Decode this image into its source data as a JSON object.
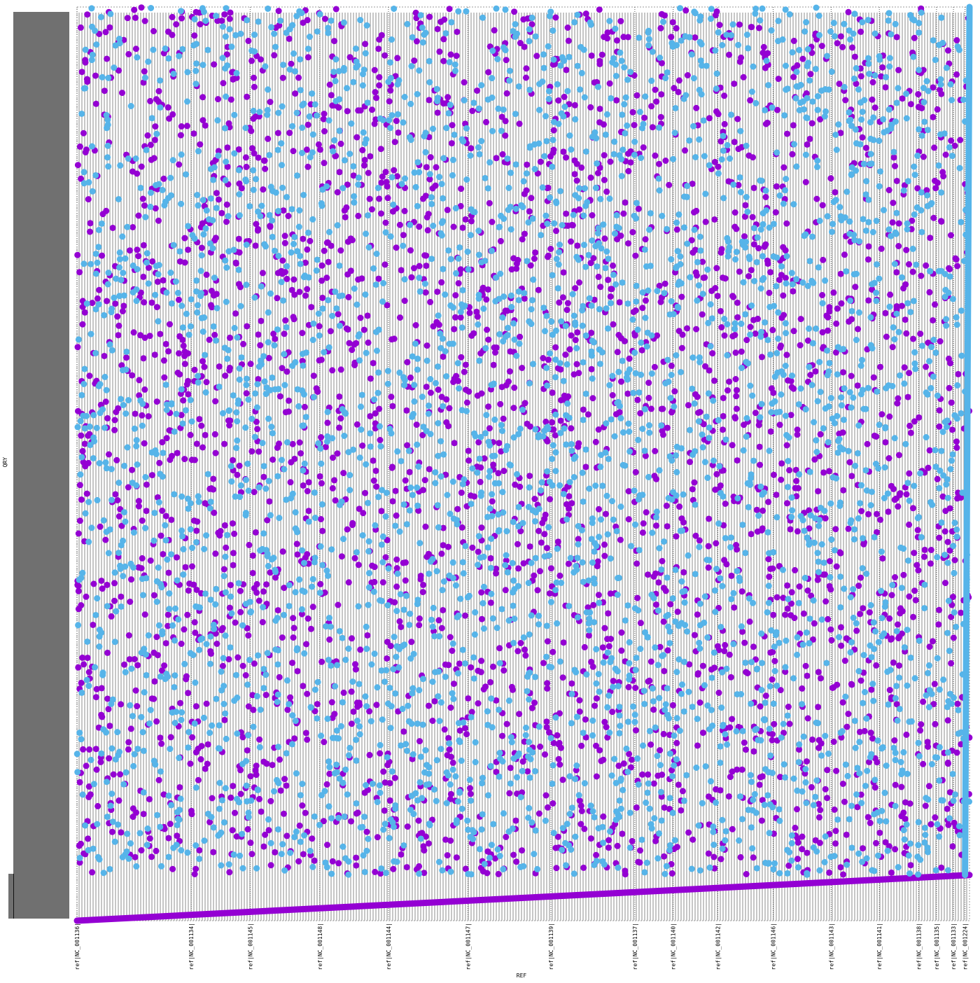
{
  "chart_data": {
    "type": "scatter",
    "title": "",
    "xlabel": "REF",
    "ylabel": "QRY",
    "x_ticks": [
      {
        "label": "ref|NC_001136|",
        "pos": 0.0
      },
      {
        "label": "ref|NC_001134|",
        "pos": 0.128
      },
      {
        "label": "ref|NC_001145|",
        "pos": 0.194
      },
      {
        "label": "ref|NC_001148|",
        "pos": 0.272
      },
      {
        "label": "ref|NC_001144|",
        "pos": 0.349
      },
      {
        "label": "ref|NC_001147|",
        "pos": 0.438
      },
      {
        "label": "ref|NC_001139|",
        "pos": 0.531
      },
      {
        "label": "ref|NC_001137|",
        "pos": 0.625
      },
      {
        "label": "ref|NC_001140|",
        "pos": 0.668
      },
      {
        "label": "ref|NC_001142|",
        "pos": 0.718
      },
      {
        "label": "ref|NC_001146|",
        "pos": 0.78
      },
      {
        "label": "ref|NC_001143|",
        "pos": 0.845
      },
      {
        "label": "ref|NC_001141|",
        "pos": 0.899
      },
      {
        "label": "ref|NC_001138|",
        "pos": 0.943
      },
      {
        "label": "ref|NC_001135|",
        "pos": 0.963
      },
      {
        "label": "ref|NC_001133|",
        "pos": 0.982
      },
      {
        "label": "ref|NC_001224|",
        "pos": 0.995
      }
    ],
    "xlim": [
      0,
      1
    ],
    "ylim": [
      0,
      1
    ],
    "grid": true,
    "legend": "none",
    "series": [
      {
        "color": "#9400d3",
        "diagonal_segments": [
          {
            "x": [
              0.0,
              1.0
            ],
            "y": [
              0.0,
              0.05
            ]
          }
        ],
        "scatter_seed": 7,
        "scatter_count": 3200
      },
      {
        "color": "#56b4e9",
        "diagonal_segments": [
          {
            "x": [
              0.995,
              1.0
            ],
            "y": [
              0.05,
              1.0
            ]
          }
        ],
        "scatter_seed": 13,
        "scatter_count": 3200
      }
    ]
  }
}
